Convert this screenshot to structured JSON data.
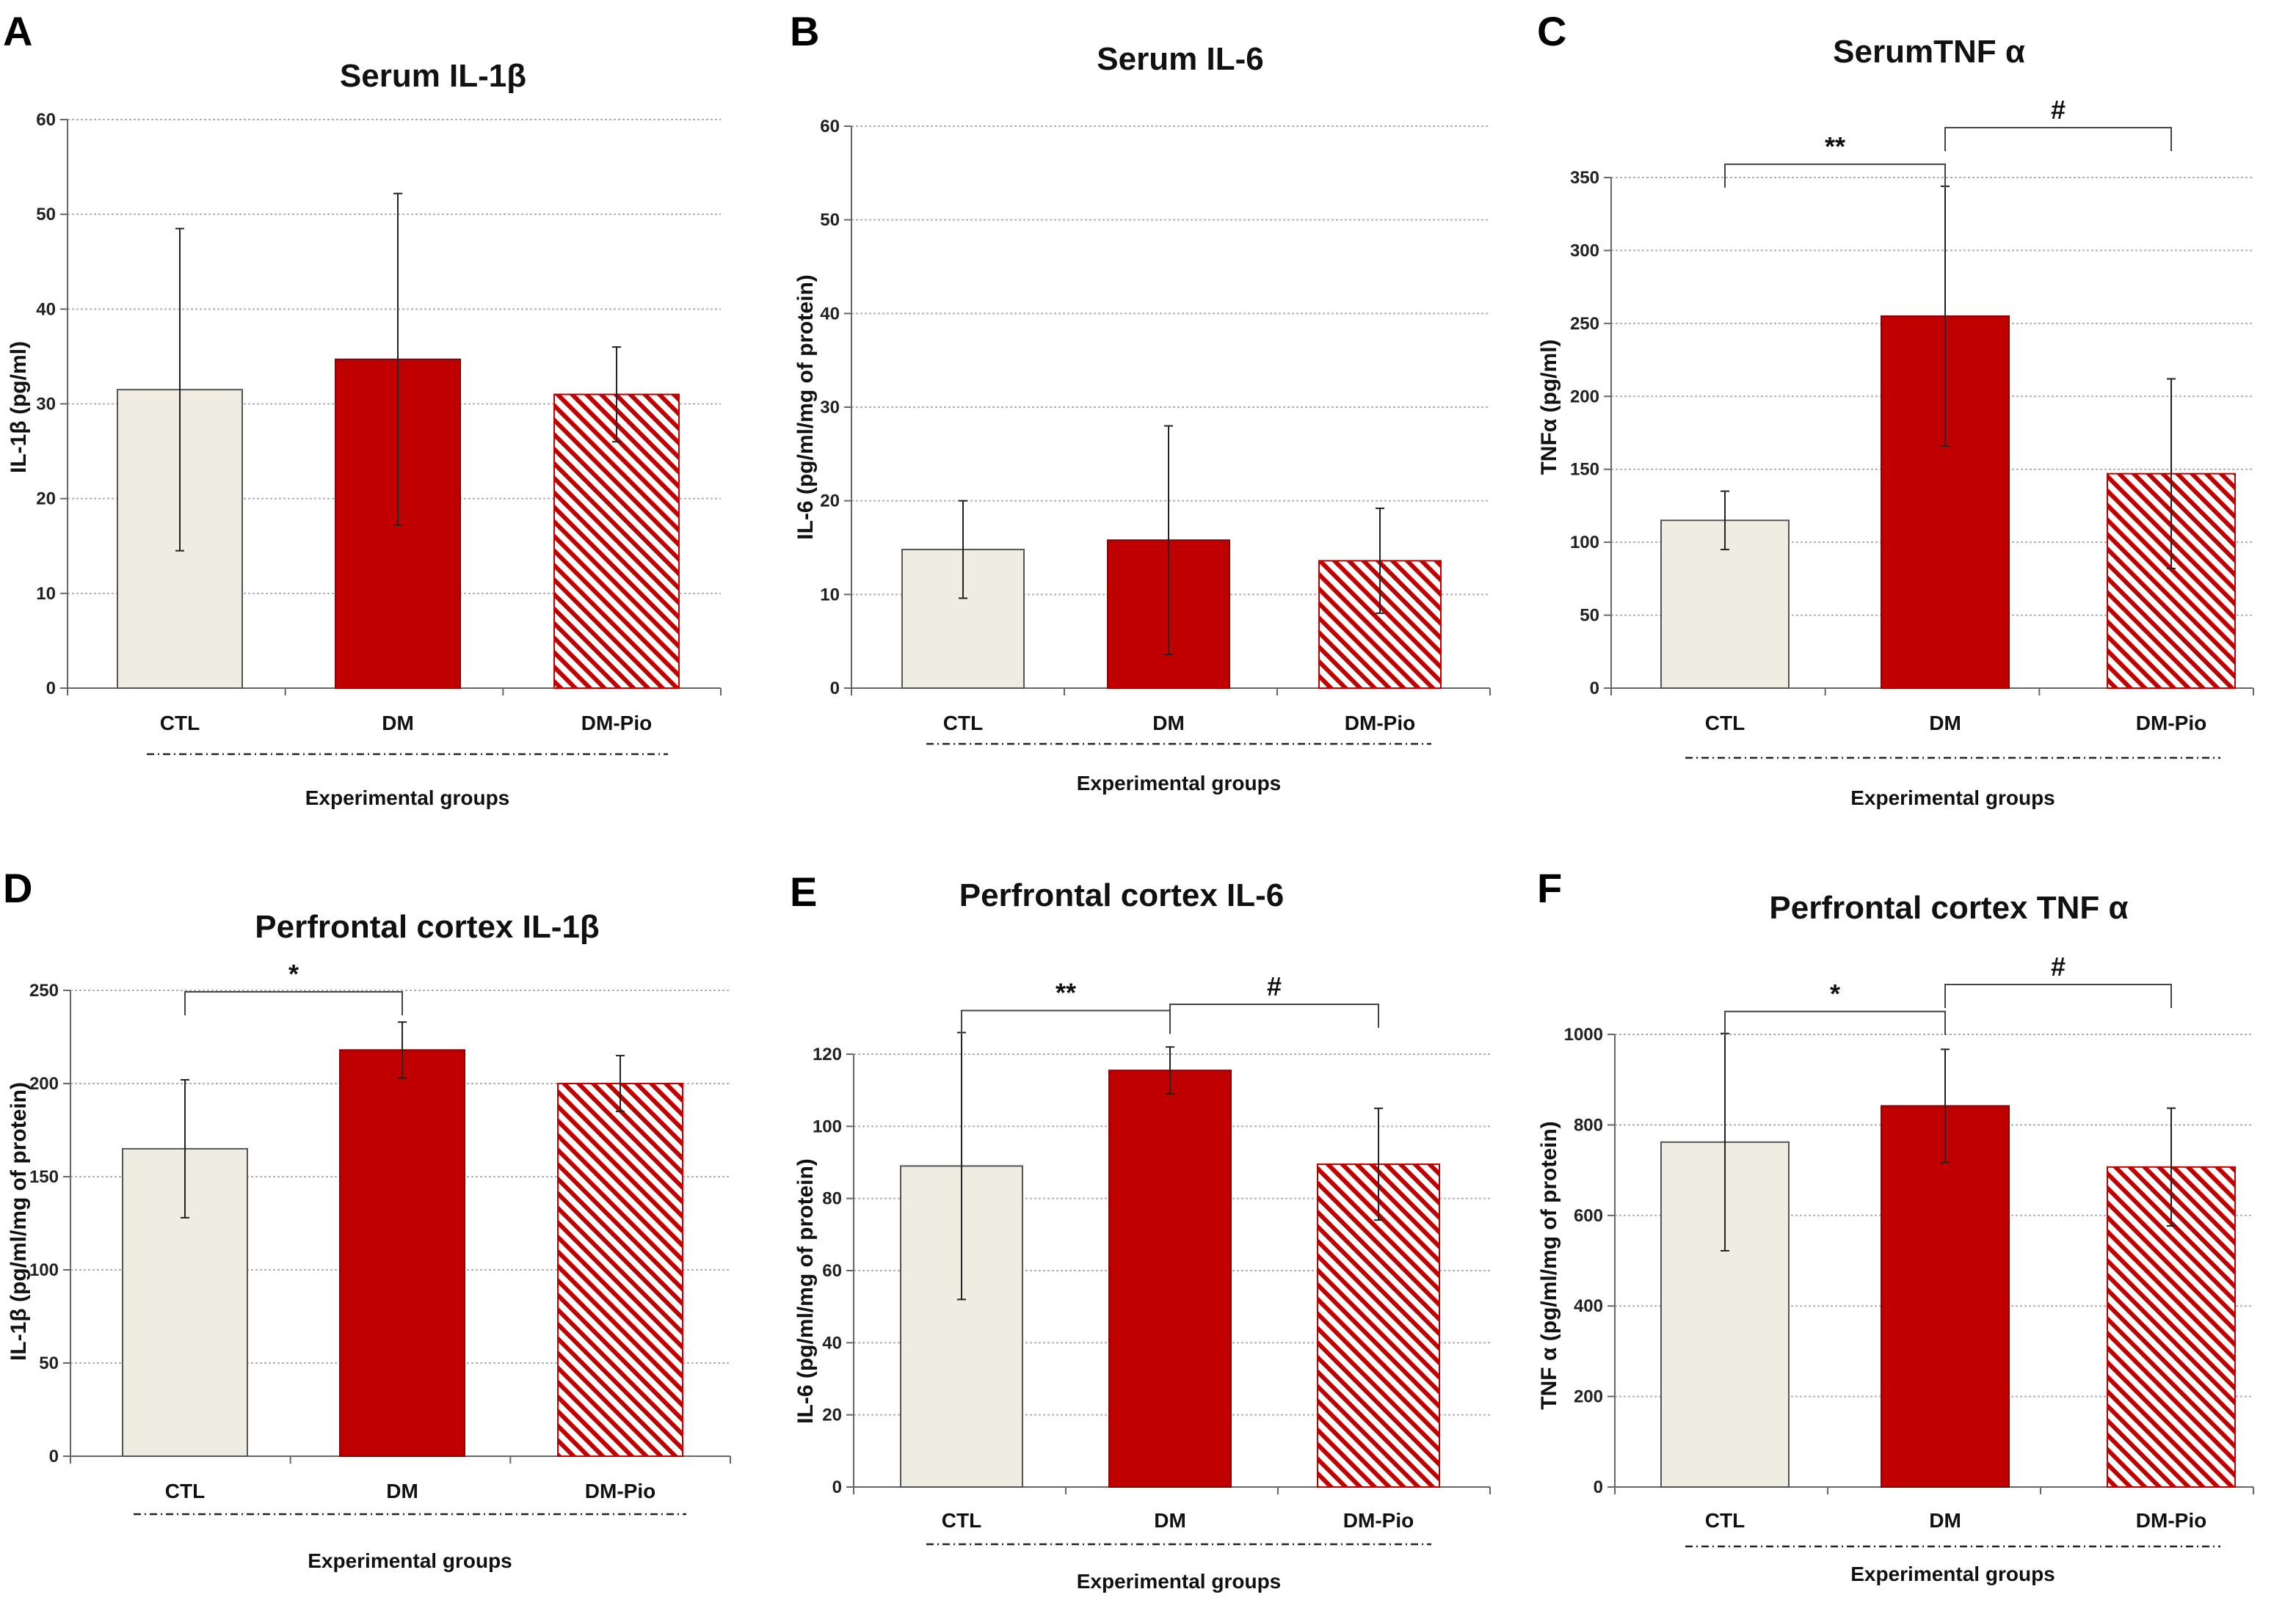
{
  "colors": {
    "ctl": "#efede2",
    "dm": "#c00000",
    "dmpio_stripe": "#c00000",
    "gridline": "#b0b0b0"
  },
  "chart_data": [
    {
      "panel": "A",
      "type": "bar",
      "title": "Serum IL-1β",
      "ylabel": "IL-1β (pg/ml)",
      "xlabel": "Experimental groups",
      "categories": [
        "CTL",
        "DM",
        "DM-Pio"
      ],
      "values": [
        31.5,
        34.7,
        31.0
      ],
      "errors": [
        17.0,
        17.5,
        5.0
      ],
      "ylim": [
        0,
        60
      ],
      "yticks": [
        0,
        10,
        20,
        30,
        40,
        50,
        60
      ],
      "significance": []
    },
    {
      "panel": "B",
      "type": "bar",
      "title": "Serum IL-6",
      "ylabel": "IL-6  (pg/ml/mg of protein)",
      "xlabel": "Experimental groups",
      "categories": [
        "CTL",
        "DM",
        "DM-Pio"
      ],
      "values": [
        14.8,
        15.8,
        13.6
      ],
      "errors": [
        5.2,
        12.2,
        5.6
      ],
      "ylim": [
        0,
        60
      ],
      "yticks": [
        0,
        10,
        20,
        30,
        40,
        50,
        60
      ],
      "significance": []
    },
    {
      "panel": "C",
      "type": "bar",
      "title": "SerumTNF α",
      "ylabel": "TNFα (pg/ml)",
      "xlabel": "Experimental groups",
      "categories": [
        "CTL",
        "DM",
        "DM-Pio"
      ],
      "values": [
        115,
        255,
        147
      ],
      "errors": [
        20,
        89,
        65
      ],
      "ylim": [
        0,
        350
      ],
      "yticks": [
        0,
        50,
        100,
        150,
        200,
        250,
        300,
        350
      ],
      "significance": [
        {
          "from": 0,
          "to": 1,
          "label": "**",
          "level": 1
        },
        {
          "from": 1,
          "to": 2,
          "label": "#",
          "level": 2
        }
      ]
    },
    {
      "panel": "D",
      "type": "bar",
      "title": "Perfrontal cortex IL-1β",
      "ylabel": "IL-1β  (pg/ml/mg of protein)",
      "xlabel": "Experimental groups",
      "categories": [
        "CTL",
        "DM",
        "DM-Pio"
      ],
      "values": [
        165,
        218,
        200
      ],
      "errors": [
        37,
        15,
        15
      ],
      "ylim": [
        0,
        250
      ],
      "yticks": [
        0,
        50,
        100,
        150,
        200,
        250
      ],
      "significance": [
        {
          "from": 0,
          "to": 1,
          "label": "*",
          "level": 1
        }
      ]
    },
    {
      "panel": "E",
      "type": "bar",
      "title": "Perfrontal cortex IL-6",
      "ylabel": "IL-6 (pg/ml/mg of protein)",
      "xlabel": "Experimental groups",
      "categories": [
        "CTL",
        "DM",
        "DM-Pio"
      ],
      "values": [
        89,
        115.5,
        89.5
      ],
      "errors": [
        37,
        6.5,
        15.5
      ],
      "ylim": [
        0,
        120
      ],
      "yticks": [
        0,
        20,
        40,
        60,
        80,
        100,
        120
      ],
      "significance": [
        {
          "from": 0,
          "to": 1,
          "label": "**",
          "level": 1
        },
        {
          "from": 1,
          "to": 2,
          "label": "#",
          "level": 2
        }
      ]
    },
    {
      "panel": "F",
      "type": "bar",
      "title": "Perfrontal cortex TNF α",
      "ylabel": "TNF α (pg/ml/mg of protein)",
      "xlabel": "Experimental groups",
      "categories": [
        "CTL",
        "DM",
        "DM-Pio"
      ],
      "values": [
        762,
        842,
        707
      ],
      "errors": [
        240,
        125,
        130
      ],
      "ylim": [
        0,
        1000
      ],
      "yticks": [
        0,
        200,
        400,
        600,
        800,
        1000
      ],
      "significance": [
        {
          "from": 0,
          "to": 1,
          "label": "*",
          "level": 1
        },
        {
          "from": 1,
          "to": 2,
          "label": "#",
          "level": 2
        }
      ]
    }
  ]
}
